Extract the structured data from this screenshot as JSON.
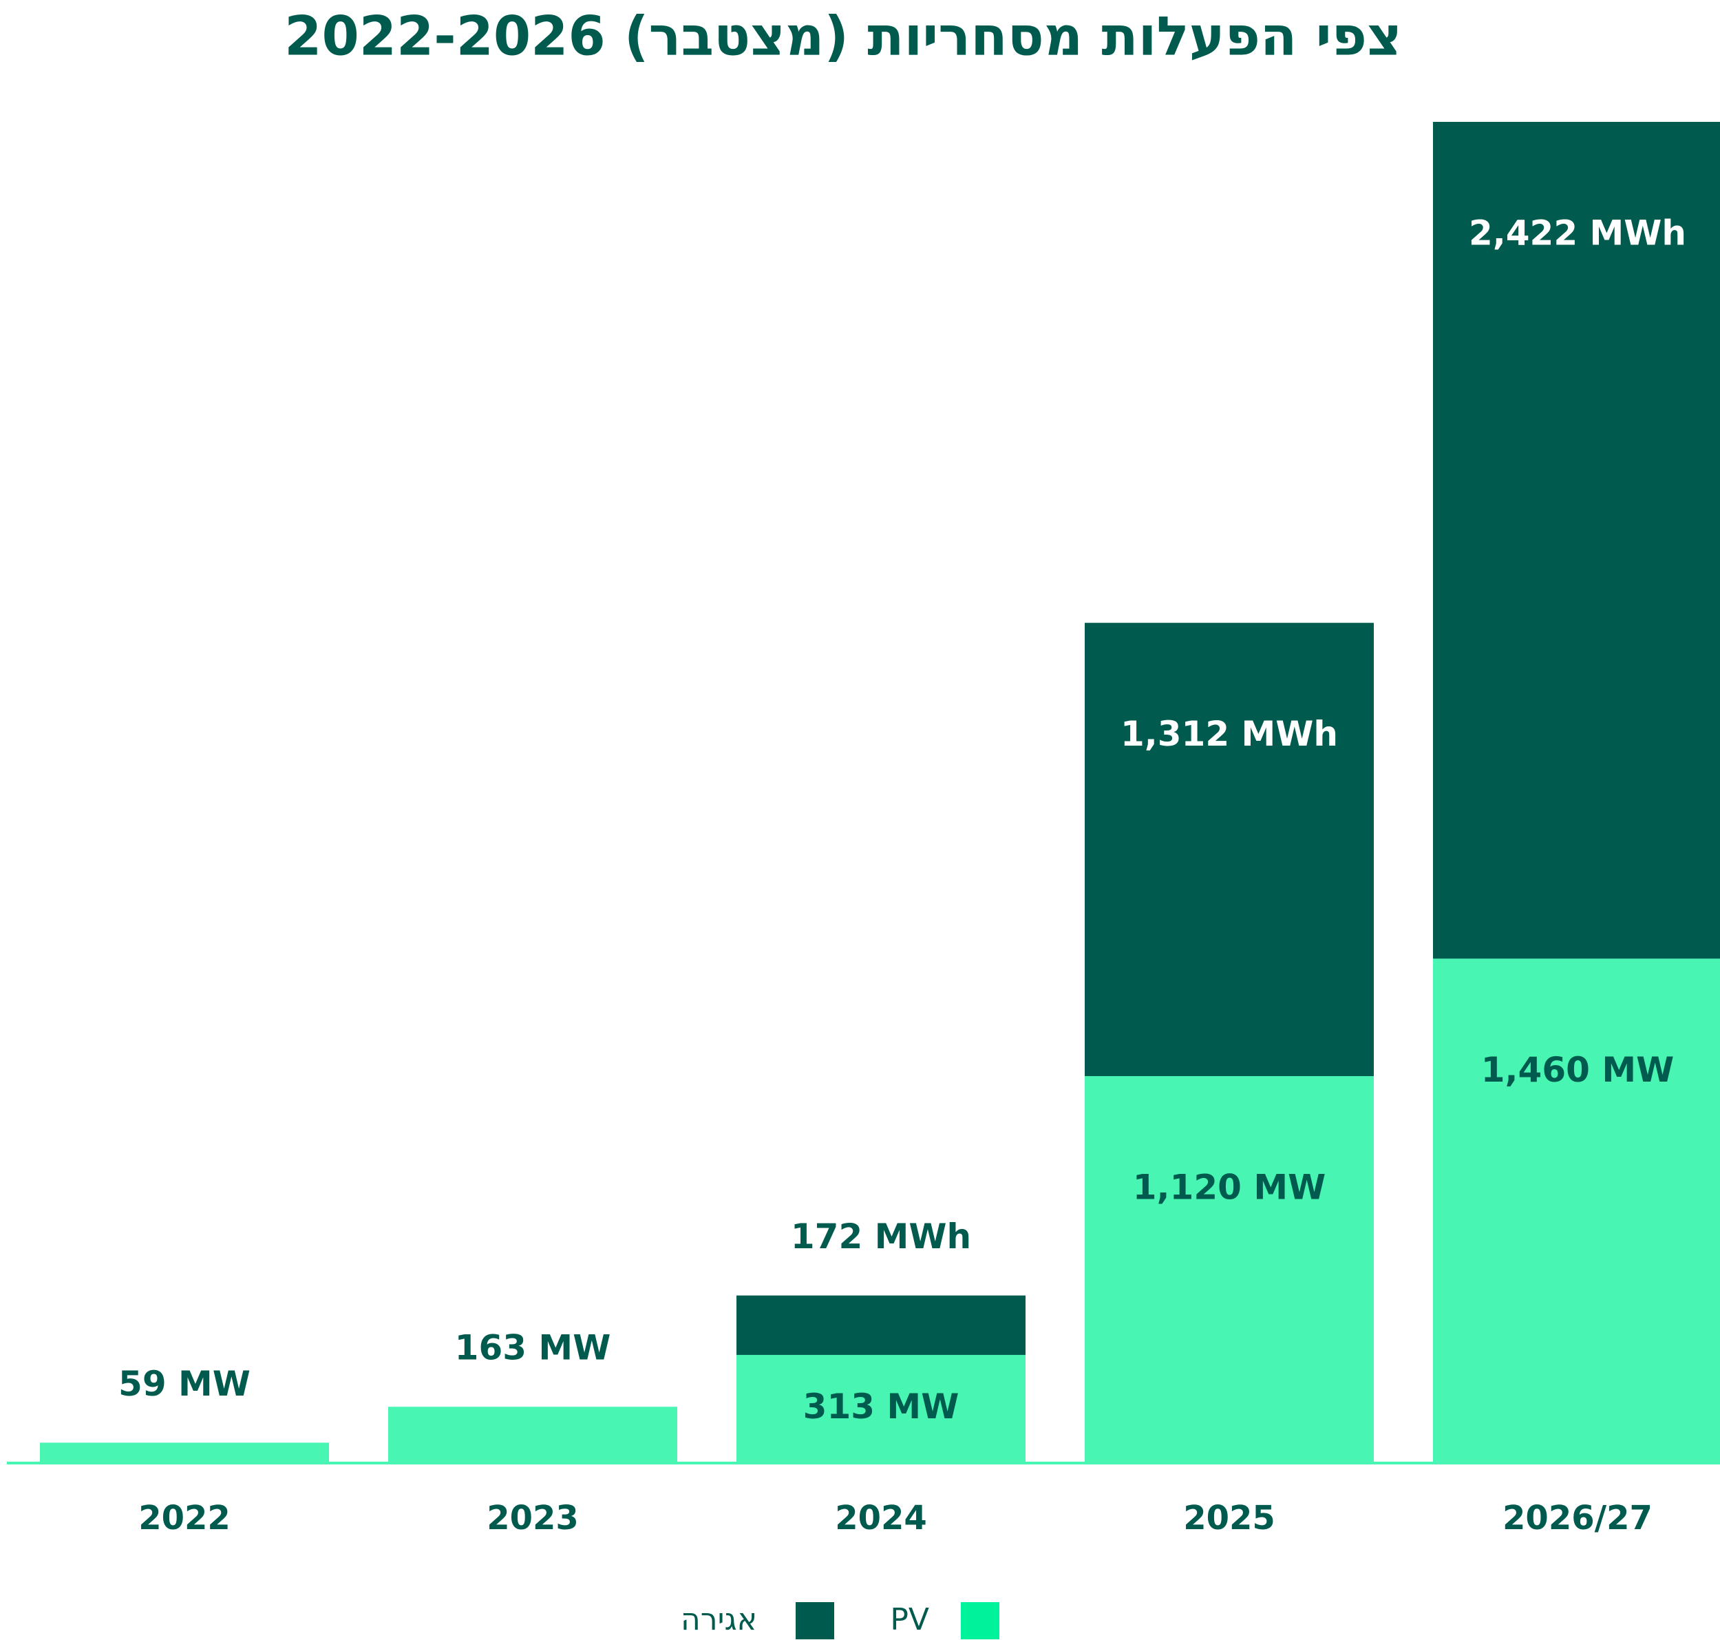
{
  "chart_data": {
    "type": "stacked_bar",
    "title": "צפי הפעלות מסחריות (מצטבר) 2022-2026",
    "categories": [
      "2022",
      "2023",
      "2024",
      "2025",
      "2026/27"
    ],
    "series": [
      {
        "name": "PV",
        "color": "#48f5b2",
        "values": [
          59,
          163,
          313,
          1120,
          1460
        ],
        "value_labels": [
          "59 MW",
          "163 MW",
          "313 MW",
          "1,120 MW",
          "1,460 MW"
        ]
      },
      {
        "name": "אגירה",
        "color": "#005a4e",
        "values": [
          null,
          null,
          172,
          1312,
          2422
        ],
        "value_labels": [
          null,
          null,
          "172 MWh",
          "1,312 MWh",
          "2,422 MWh"
        ]
      }
    ]
  }
}
